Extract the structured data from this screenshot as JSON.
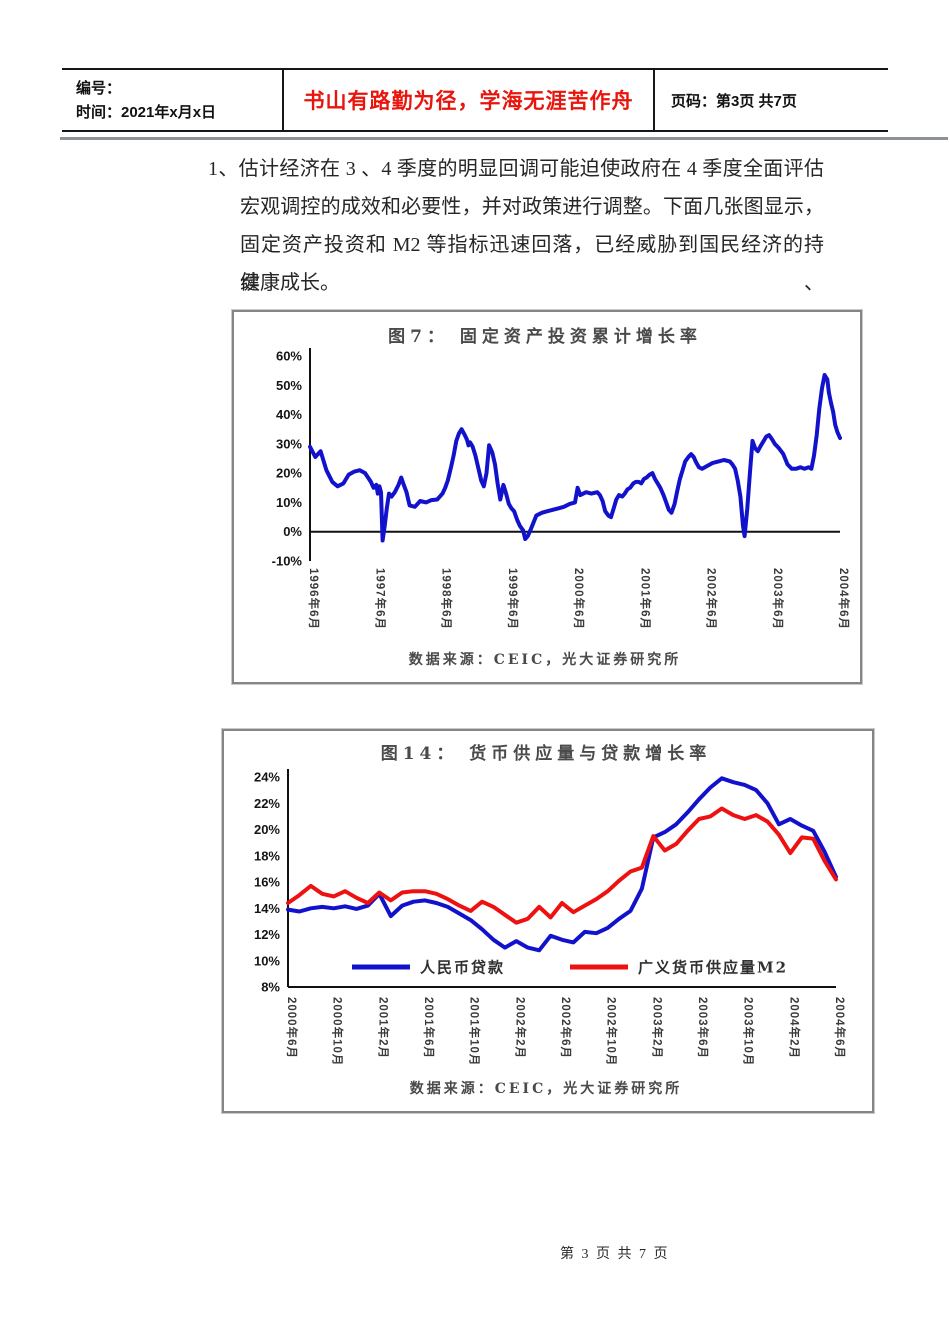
{
  "header": {
    "field_no": "编号：",
    "field_time": "时间：2021年x月x日",
    "motto": "书山有路勤为径，学海无涯苦作舟",
    "motto_color": "#e8150d",
    "page_label": "页码：第3页 共7页"
  },
  "paragraph": {
    "lines": [
      "1、估计经济在 3 、4 季度的明显回调可能迫使政府在 4 季度全面评估",
      "宏观调控的成效和必要性，并对政策进行调整。下面几张图显示，",
      "固定资产投资和 M2 等指标迅速回落，已经威胁到国民经济的持续、",
      "健康成长。"
    ]
  },
  "footer": {
    "page_text": "第 3 页 共 7 页"
  },
  "chart_data": [
    {
      "type": "line",
      "title": "图7： 固定资产投资累计增长率",
      "source": "数据来源：CEIC，光大证券研究所",
      "ylim": [
        -10,
        60
      ],
      "ystep": 10,
      "ylabel_suffix": "%",
      "grid": false,
      "legend_position": "none",
      "xticklabels": [
        "1996年6月",
        "1997年6月",
        "1998年6月",
        "1999年6月",
        "2000年6月",
        "2001年6月",
        "2002年6月",
        "2003年6月",
        "2004年6月"
      ],
      "x_range_note": "monthly 1996-06 to 2004-06, x stored as fraction of axis",
      "series": [
        {
          "name": "固定资产投资累计增长率",
          "color": "#1212cc",
          "points": [
            [
              0,
              29
            ],
            [
              0.01,
              25.5
            ],
            [
              0.02,
              27.5
            ],
            [
              0.031,
              21
            ],
            [
              0.042,
              17
            ],
            [
              0.052,
              15.5
            ],
            [
              0.063,
              16.5
            ],
            [
              0.073,
              19.5
            ],
            [
              0.083,
              20.5
            ],
            [
              0.094,
              21
            ],
            [
              0.104,
              20
            ],
            [
              0.115,
              17
            ],
            [
              0.12,
              15
            ],
            [
              0.125,
              16
            ],
            [
              0.128,
              13
            ],
            [
              0.131,
              15.5
            ],
            [
              0.134,
              13.5
            ],
            [
              0.137,
              -3
            ],
            [
              0.141,
              2
            ],
            [
              0.145,
              8
            ],
            [
              0.149,
              13
            ],
            [
              0.154,
              12
            ],
            [
              0.16,
              13.5
            ],
            [
              0.167,
              16
            ],
            [
              0.172,
              18.5
            ],
            [
              0.177,
              16
            ],
            [
              0.182,
              13.5
            ],
            [
              0.188,
              9
            ],
            [
              0.198,
              8.5
            ],
            [
              0.208,
              10.5
            ],
            [
              0.219,
              10
            ],
            [
              0.229,
              10.8
            ],
            [
              0.24,
              11
            ],
            [
              0.25,
              13
            ],
            [
              0.255,
              15
            ],
            [
              0.26,
              17.5
            ],
            [
              0.266,
              22
            ],
            [
              0.271,
              26
            ],
            [
              0.276,
              31
            ],
            [
              0.281,
              33.5
            ],
            [
              0.286,
              35
            ],
            [
              0.292,
              33
            ],
            [
              0.296,
              31.5
            ],
            [
              0.299,
              29.5
            ],
            [
              0.302,
              30.5
            ],
            [
              0.307,
              29
            ],
            [
              0.312,
              26
            ],
            [
              0.318,
              21.5
            ],
            [
              0.323,
              17.5
            ],
            [
              0.328,
              15.5
            ],
            [
              0.333,
              20
            ],
            [
              0.338,
              29.5
            ],
            [
              0.344,
              27
            ],
            [
              0.349,
              23
            ],
            [
              0.354,
              16.5
            ],
            [
              0.359,
              11
            ],
            [
              0.365,
              16
            ],
            [
              0.37,
              13
            ],
            [
              0.375,
              9.5
            ],
            [
              0.38,
              8
            ],
            [
              0.385,
              7
            ],
            [
              0.391,
              4
            ],
            [
              0.396,
              2
            ],
            [
              0.402,
              0.5
            ],
            [
              0.406,
              -2.5
            ],
            [
              0.411,
              -1.5
            ],
            [
              0.417,
              1
            ],
            [
              0.427,
              5.5
            ],
            [
              0.438,
              6.5
            ],
            [
              0.448,
              7
            ],
            [
              0.458,
              7.5
            ],
            [
              0.469,
              8
            ],
            [
              0.479,
              8.5
            ],
            [
              0.49,
              9.5
            ],
            [
              0.5,
              10
            ],
            [
              0.505,
              15
            ],
            [
              0.51,
              12.5
            ],
            [
              0.521,
              13.5
            ],
            [
              0.531,
              13
            ],
            [
              0.542,
              13.5
            ],
            [
              0.547,
              12.5
            ],
            [
              0.552,
              10.5
            ],
            [
              0.557,
              7
            ],
            [
              0.563,
              5.5
            ],
            [
              0.568,
              5
            ],
            [
              0.573,
              8
            ],
            [
              0.578,
              11
            ],
            [
              0.583,
              12.5
            ],
            [
              0.589,
              12
            ],
            [
              0.594,
              13
            ],
            [
              0.599,
              14.5
            ],
            [
              0.604,
              15
            ],
            [
              0.61,
              16.5
            ],
            [
              0.615,
              17
            ],
            [
              0.62,
              17
            ],
            [
              0.625,
              16.5
            ],
            [
              0.63,
              18
            ],
            [
              0.635,
              18.5
            ],
            [
              0.641,
              19.5
            ],
            [
              0.646,
              20
            ],
            [
              0.651,
              18
            ],
            [
              0.656,
              16.5
            ],
            [
              0.661,
              15
            ],
            [
              0.667,
              12.5
            ],
            [
              0.672,
              10
            ],
            [
              0.677,
              7.5
            ],
            [
              0.682,
              6.5
            ],
            [
              0.688,
              9.5
            ],
            [
              0.693,
              14
            ],
            [
              0.698,
              18
            ],
            [
              0.703,
              21
            ],
            [
              0.708,
              24
            ],
            [
              0.714,
              25.5
            ],
            [
              0.719,
              26.5
            ],
            [
              0.724,
              25.5
            ],
            [
              0.729,
              23.5
            ],
            [
              0.734,
              22
            ],
            [
              0.74,
              21.5
            ],
            [
              0.75,
              22.5
            ],
            [
              0.76,
              23.5
            ],
            [
              0.771,
              24
            ],
            [
              0.781,
              24.5
            ],
            [
              0.792,
              24
            ],
            [
              0.797,
              23
            ],
            [
              0.802,
              21.5
            ],
            [
              0.807,
              17.5
            ],
            [
              0.812,
              12
            ],
            [
              0.817,
              2
            ],
            [
              0.82,
              -1.5
            ],
            [
              0.825,
              8
            ],
            [
              0.83,
              20
            ],
            [
              0.835,
              31
            ],
            [
              0.84,
              28.5
            ],
            [
              0.845,
              27.5
            ],
            [
              0.851,
              29.5
            ],
            [
              0.856,
              31
            ],
            [
              0.861,
              32.5
            ],
            [
              0.866,
              33
            ],
            [
              0.872,
              31.5
            ],
            [
              0.877,
              30
            ],
            [
              0.885,
              28.5
            ],
            [
              0.893,
              26.5
            ],
            [
              0.901,
              23
            ],
            [
              0.909,
              21.5
            ],
            [
              0.917,
              21.5
            ],
            [
              0.925,
              22
            ],
            [
              0.933,
              21.5
            ],
            [
              0.941,
              22
            ],
            [
              0.946,
              21.5
            ],
            [
              0.951,
              26
            ],
            [
              0.956,
              33
            ],
            [
              0.961,
              42
            ],
            [
              0.966,
              49
            ],
            [
              0.971,
              53.5
            ],
            [
              0.976,
              52
            ],
            [
              0.979,
              47.5
            ],
            [
              0.983,
              44
            ],
            [
              0.987,
              41
            ],
            [
              0.991,
              36.5
            ],
            [
              0.995,
              34
            ],
            [
              1,
              32
            ]
          ]
        }
      ]
    },
    {
      "type": "line",
      "title": "图14： 货币供应量与贷款增长率",
      "source": "数据来源：CEIC，光大证券研究所",
      "ylim": [
        8,
        24
      ],
      "ystep": 2,
      "ylabel_suffix": "%",
      "grid": false,
      "legend_position": "inside-bottom",
      "legend": [
        "人民币贷款",
        "广义货币供应量M2"
      ],
      "xticklabels": [
        "2000年6月",
        "2000年10月",
        "2001年2月",
        "2001年6月",
        "2001年10月",
        "2002年2月",
        "2002年6月",
        "2002年10月",
        "2003年2月",
        "2003年6月",
        "2003年10月",
        "2004年2月",
        "2004年6月"
      ],
      "x_start": "2000年6月",
      "freq": "monthly",
      "series": [
        {
          "name": "人民币贷款",
          "color": "#1212cc",
          "values": [
            13.9,
            13.75,
            14,
            14.1,
            14,
            14.15,
            13.95,
            14.2,
            15.1,
            13.4,
            14.2,
            14.5,
            14.6,
            14.4,
            14.1,
            13.6,
            13.1,
            12.4,
            11.6,
            11,
            11.5,
            11,
            10.8,
            11.9,
            11.6,
            11.4,
            12.2,
            12.1,
            12.5,
            13.2,
            13.8,
            15.5,
            19.4,
            19.8,
            20.4,
            21.3,
            22.3,
            23.2,
            23.9,
            23.6,
            23.4,
            23,
            22,
            20.4,
            20.8,
            20.3,
            19.9,
            18.3,
            16.4
          ]
        },
        {
          "name": "广义货币供应量M2",
          "color": "#ee1111",
          "values": [
            14.4,
            15,
            15.7,
            15.1,
            14.9,
            15.3,
            14.8,
            14.4,
            15.2,
            14.6,
            15.2,
            15.3,
            15.3,
            15.1,
            14.7,
            14.2,
            13.8,
            14.5,
            14.1,
            13.5,
            12.9,
            13.2,
            14.1,
            13.3,
            14.4,
            13.7,
            14.2,
            14.7,
            15.3,
            16.1,
            16.8,
            17.1,
            19.5,
            18.4,
            18.9,
            19.9,
            20.8,
            21,
            21.6,
            21.1,
            20.8,
            21.1,
            20.6,
            19.6,
            18.2,
            19.4,
            19.3,
            17.6,
            16.2
          ]
        }
      ]
    }
  ]
}
